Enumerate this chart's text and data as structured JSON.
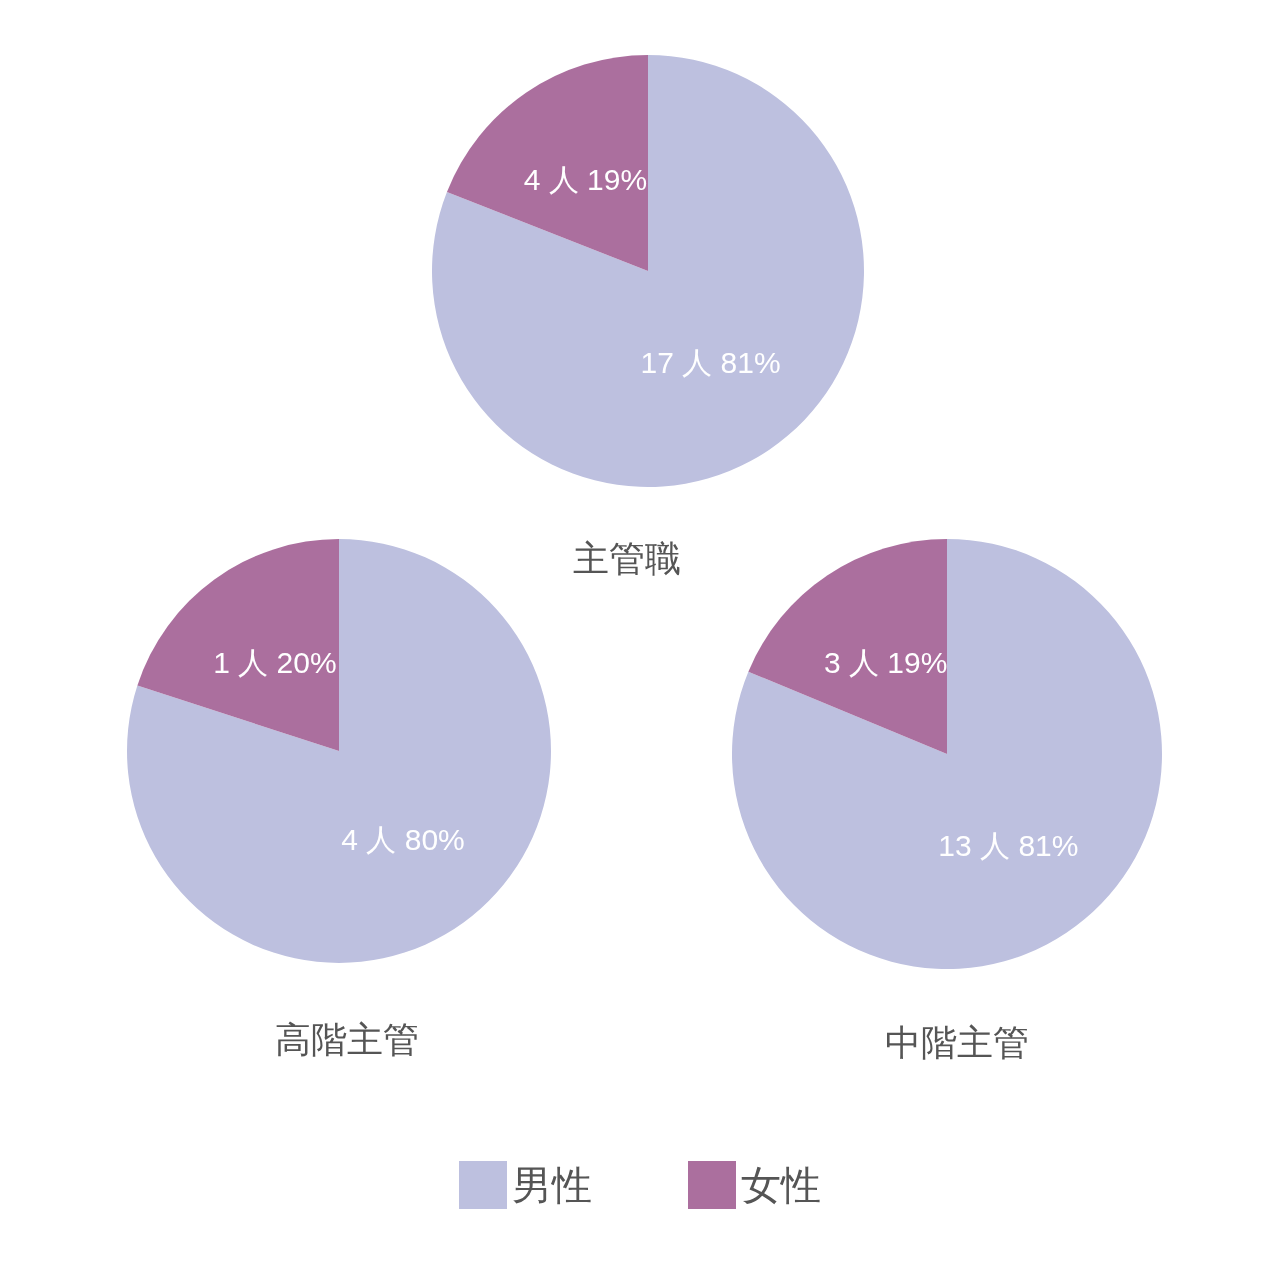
{
  "chart_data": {
    "type": "pie",
    "categories": [
      "男性",
      "女性"
    ],
    "colors": [
      "#bdc0df",
      "#ab6f9e"
    ],
    "legend": "bottom",
    "series": [
      {
        "name": "主管職",
        "values": [
          17,
          4
        ],
        "value_labels": [
          "17 人 81%",
          "4 人 19%"
        ]
      },
      {
        "name": "高階主管",
        "values": [
          4,
          1
        ],
        "value_labels": [
          "4 人 80%",
          "1 人 20%"
        ]
      },
      {
        "name": "中階主管",
        "values": [
          13,
          3
        ],
        "value_labels": [
          "13 人 81%",
          "3 人 19%"
        ]
      }
    ]
  }
}
